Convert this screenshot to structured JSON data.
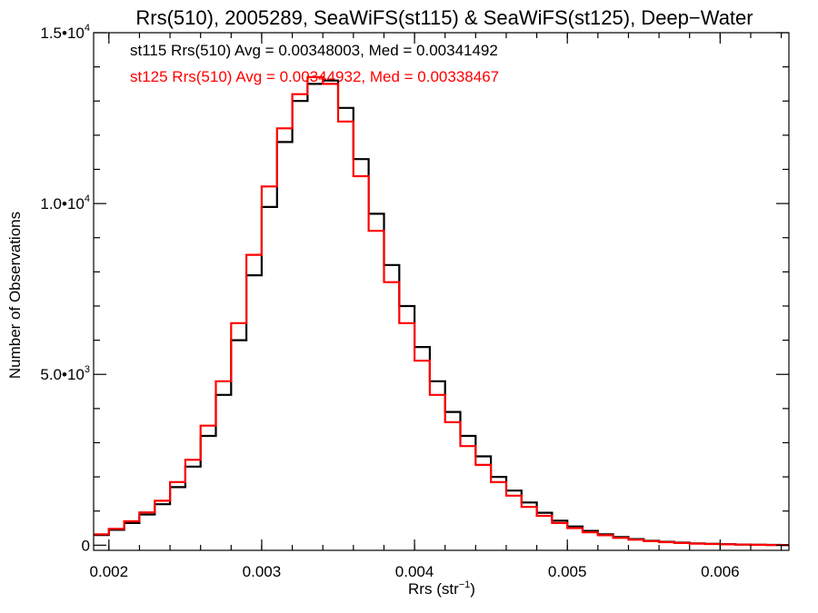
{
  "chart_data": {
    "type": "line",
    "step": true,
    "title": "Rrs(510), 2005289, SeaWiFS(st115) & SeaWiFS(st125), Deep−Water",
    "xlabel": "Rrs (str",
    "xlabel_sup": "−1",
    "xlabel_close": ")",
    "ylabel": "Number of Observations",
    "xlim": [
      0.0019,
      0.00645
    ],
    "ylim": [
      -150,
      15000
    ],
    "x_ticks": [
      0.002,
      0.003,
      0.004,
      0.005,
      0.006
    ],
    "x_tick_labels": [
      "0.002",
      "0.003",
      "0.004",
      "0.005",
      "0.006"
    ],
    "y_ticks": [
      0,
      5000,
      10000,
      15000
    ],
    "y_tick_labels": [
      {
        "base": "0",
        "exp": ""
      },
      {
        "base": "5.0•10",
        "exp": "3"
      },
      {
        "base": "1.0•10",
        "exp": "4"
      },
      {
        "base": "1.5•10",
        "exp": "4"
      }
    ],
    "annotations": [
      {
        "text": "st115 Rrs(510) Avg = 0.00348003, Med = 0.00341492",
        "color": "#000000"
      },
      {
        "text": "st125 Rrs(510) Avg = 0.00344932, Med = 0.00338467",
        "color": "#ff0000"
      }
    ],
    "series": [
      {
        "color": "#000000",
        "x": [
          0.0019,
          0.002,
          0.0021,
          0.0022,
          0.0023,
          0.0024,
          0.0025,
          0.0026,
          0.0027,
          0.0028,
          0.0029,
          0.003,
          0.0031,
          0.0032,
          0.0033,
          0.0034,
          0.0035,
          0.0036,
          0.0037,
          0.0038,
          0.0039,
          0.004,
          0.0041,
          0.0042,
          0.0043,
          0.0044,
          0.0045,
          0.0046,
          0.0047,
          0.0048,
          0.0049,
          0.005,
          0.0051,
          0.0052,
          0.0053,
          0.0054,
          0.0055,
          0.0056,
          0.0057,
          0.0058,
          0.0059,
          0.006,
          0.0061,
          0.0062,
          0.0063,
          0.0064
        ],
        "y": [
          300,
          450,
          650,
          900,
          1200,
          1700,
          2300,
          3200,
          4400,
          6000,
          7900,
          9900,
          11800,
          13000,
          13500,
          13600,
          12800,
          11300,
          9700,
          8200,
          7000,
          5800,
          4800,
          3900,
          3200,
          2600,
          2000,
          1600,
          1250,
          950,
          720,
          550,
          420,
          320,
          240,
          180,
          130,
          100,
          75,
          55,
          40,
          30,
          20,
          15,
          10,
          5
        ]
      },
      {
        "color": "#ff0000",
        "x": [
          0.0019,
          0.002,
          0.0021,
          0.0022,
          0.0023,
          0.0024,
          0.0025,
          0.0026,
          0.0027,
          0.0028,
          0.0029,
          0.003,
          0.0031,
          0.0032,
          0.0033,
          0.0034,
          0.0035,
          0.0036,
          0.0037,
          0.0038,
          0.0039,
          0.004,
          0.0041,
          0.0042,
          0.0043,
          0.0044,
          0.0045,
          0.0046,
          0.0047,
          0.0048,
          0.0049,
          0.005,
          0.0051,
          0.0052,
          0.0053,
          0.0054,
          0.0055,
          0.0056,
          0.0057,
          0.0058,
          0.0059,
          0.006,
          0.0061,
          0.0062,
          0.0063,
          0.0064
        ],
        "y": [
          320,
          480,
          700,
          960,
          1300,
          1850,
          2500,
          3500,
          4800,
          6500,
          8500,
          10500,
          12200,
          13200,
          13700,
          13500,
          12400,
          10800,
          9200,
          7700,
          6500,
          5400,
          4400,
          3600,
          2900,
          2350,
          1850,
          1450,
          1120,
          860,
          650,
          500,
          380,
          290,
          215,
          160,
          118,
          88,
          65,
          48,
          35,
          26,
          18,
          12,
          8,
          4
        ]
      }
    ]
  }
}
